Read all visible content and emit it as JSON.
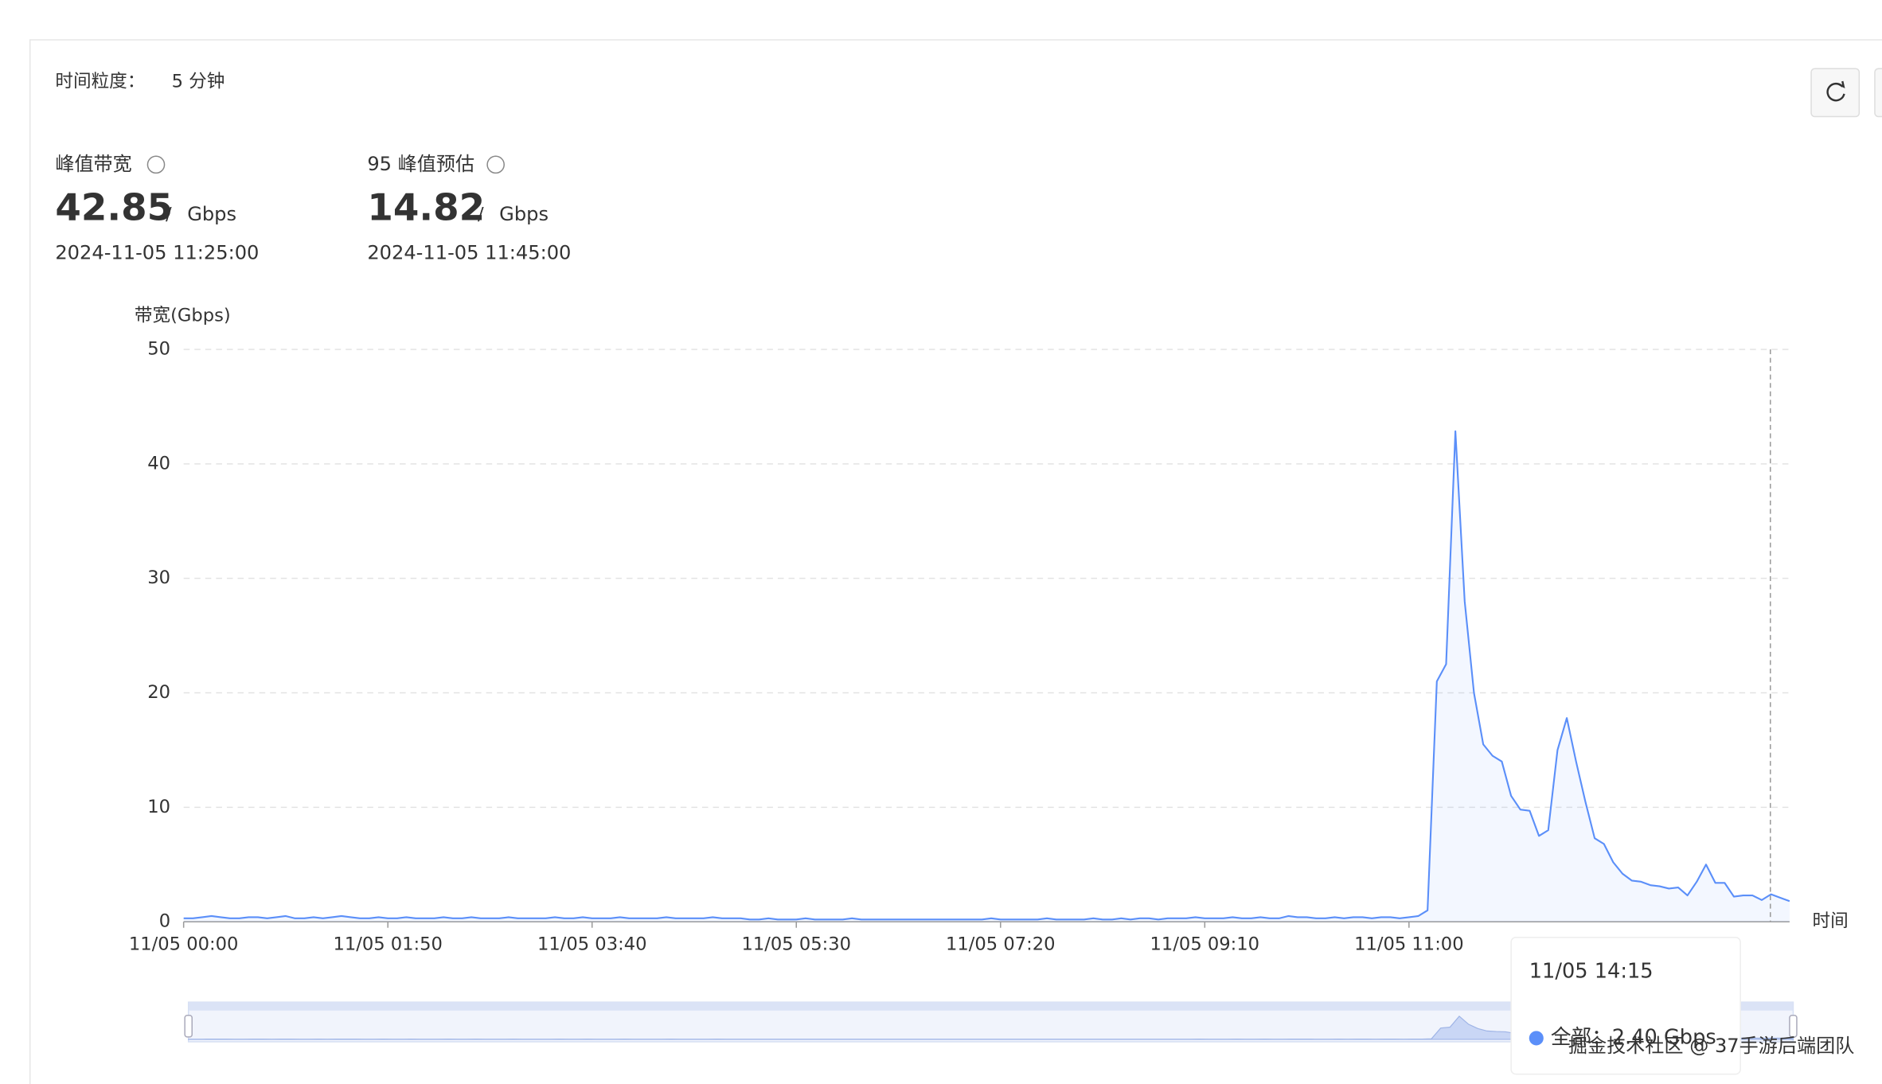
{
  "header": {
    "granularity_label": "时间粒度：",
    "granularity_value": "5 分钟"
  },
  "stats": [
    {
      "label": "峰值带宽",
      "value": 42.85,
      "separator": "/",
      "unit": "Gbps",
      "time": "2024-11-05 11:25:00"
    },
    {
      "label": "95 峰值预估",
      "value": 14.82,
      "separator": "/",
      "unit": "Gbps",
      "time": "2024-11-05 11:45:00"
    }
  ],
  "chart_data": {
    "type": "line",
    "y_label": "带宽(Gbps)",
    "x_label": "时间",
    "ylim": [
      0,
      50
    ],
    "yticks": [
      0,
      10,
      20,
      30,
      40,
      50
    ],
    "grid": true,
    "color": "#5b8ff9",
    "categories": [
      "11/05 00:00",
      null,
      null,
      null,
      null,
      null,
      null,
      null,
      null,
      null,
      null,
      null,
      null,
      null,
      null,
      null,
      null,
      null,
      null,
      null,
      null,
      null,
      "11/05 01:50",
      null,
      null,
      null,
      null,
      null,
      null,
      null,
      null,
      null,
      null,
      null,
      null,
      null,
      null,
      null,
      null,
      null,
      null,
      null,
      null,
      null,
      "11/05 03:40",
      null,
      null,
      null,
      null,
      null,
      null,
      null,
      null,
      null,
      null,
      null,
      null,
      null,
      null,
      null,
      null,
      null,
      null,
      null,
      null,
      null,
      "11/05 05:30",
      null,
      null,
      null,
      null,
      null,
      null,
      null,
      null,
      null,
      null,
      null,
      null,
      null,
      null,
      null,
      null,
      null,
      null,
      null,
      null,
      null,
      "11/05 07:20",
      null,
      null,
      null,
      null,
      null,
      null,
      null,
      null,
      null,
      null,
      null,
      null,
      null,
      null,
      null,
      null,
      null,
      null,
      null,
      null,
      null,
      "11/05 09:10",
      null,
      null,
      null,
      null,
      null,
      null,
      null,
      null,
      null,
      null,
      null,
      null,
      null,
      null,
      null,
      null,
      null,
      null,
      null,
      null,
      null,
      "11/05 11:00",
      null,
      null,
      null,
      null,
      null,
      null,
      null,
      null,
      null,
      null,
      null,
      null,
      null,
      null,
      null,
      null,
      null,
      null,
      null,
      null,
      null,
      null,
      null,
      null,
      null,
      null,
      null,
      null,
      null,
      null,
      null,
      null,
      null,
      null,
      null,
      null,
      null,
      null,
      null,
      null,
      null
    ],
    "values": [
      0.3,
      0.3,
      0.4,
      0.5,
      0.4,
      0.3,
      0.3,
      0.4,
      0.4,
      0.3,
      0.4,
      0.5,
      0.3,
      0.3,
      0.4,
      0.3,
      0.4,
      0.5,
      0.4,
      0.3,
      0.3,
      0.4,
      0.3,
      0.3,
      0.4,
      0.3,
      0.3,
      0.3,
      0.4,
      0.3,
      0.3,
      0.4,
      0.3,
      0.3,
      0.3,
      0.4,
      0.3,
      0.3,
      0.3,
      0.3,
      0.4,
      0.3,
      0.3,
      0.4,
      0.3,
      0.3,
      0.3,
      0.4,
      0.3,
      0.3,
      0.3,
      0.3,
      0.4,
      0.3,
      0.3,
      0.3,
      0.3,
      0.4,
      0.3,
      0.3,
      0.3,
      0.2,
      0.2,
      0.3,
      0.2,
      0.2,
      0.2,
      0.3,
      0.2,
      0.2,
      0.2,
      0.2,
      0.3,
      0.2,
      0.2,
      0.2,
      0.2,
      0.2,
      0.2,
      0.2,
      0.2,
      0.2,
      0.2,
      0.2,
      0.2,
      0.2,
      0.2,
      0.3,
      0.2,
      0.2,
      0.2,
      0.2,
      0.2,
      0.3,
      0.2,
      0.2,
      0.2,
      0.2,
      0.3,
      0.2,
      0.2,
      0.3,
      0.2,
      0.3,
      0.3,
      0.2,
      0.3,
      0.3,
      0.3,
      0.4,
      0.3,
      0.3,
      0.3,
      0.4,
      0.3,
      0.3,
      0.4,
      0.3,
      0.3,
      0.5,
      0.4,
      0.4,
      0.3,
      0.3,
      0.4,
      0.3,
      0.4,
      0.4,
      0.3,
      0.4,
      0.4,
      0.3,
      0.4,
      0.5,
      1.0,
      21,
      22.5,
      42.85,
      28,
      20,
      15.5,
      14.5,
      14,
      11,
      9.8,
      9.7,
      7.5,
      8,
      15,
      17.8,
      14,
      10.5,
      7.3,
      6.8,
      5.2,
      4.2,
      3.6,
      3.5,
      3.2,
      3.1,
      2.9,
      3.0,
      2.3,
      3.5,
      5.0,
      3.4,
      3.4,
      2.2,
      2.3,
      2.3,
      1.9,
      2.4,
      2.1,
      1.8
    ]
  },
  "tooltip": {
    "title": "11/05 14:15",
    "text": "全部：2.40 Gbps"
  },
  "watermark": "掘金技术社区 @ 37手游后端团队"
}
